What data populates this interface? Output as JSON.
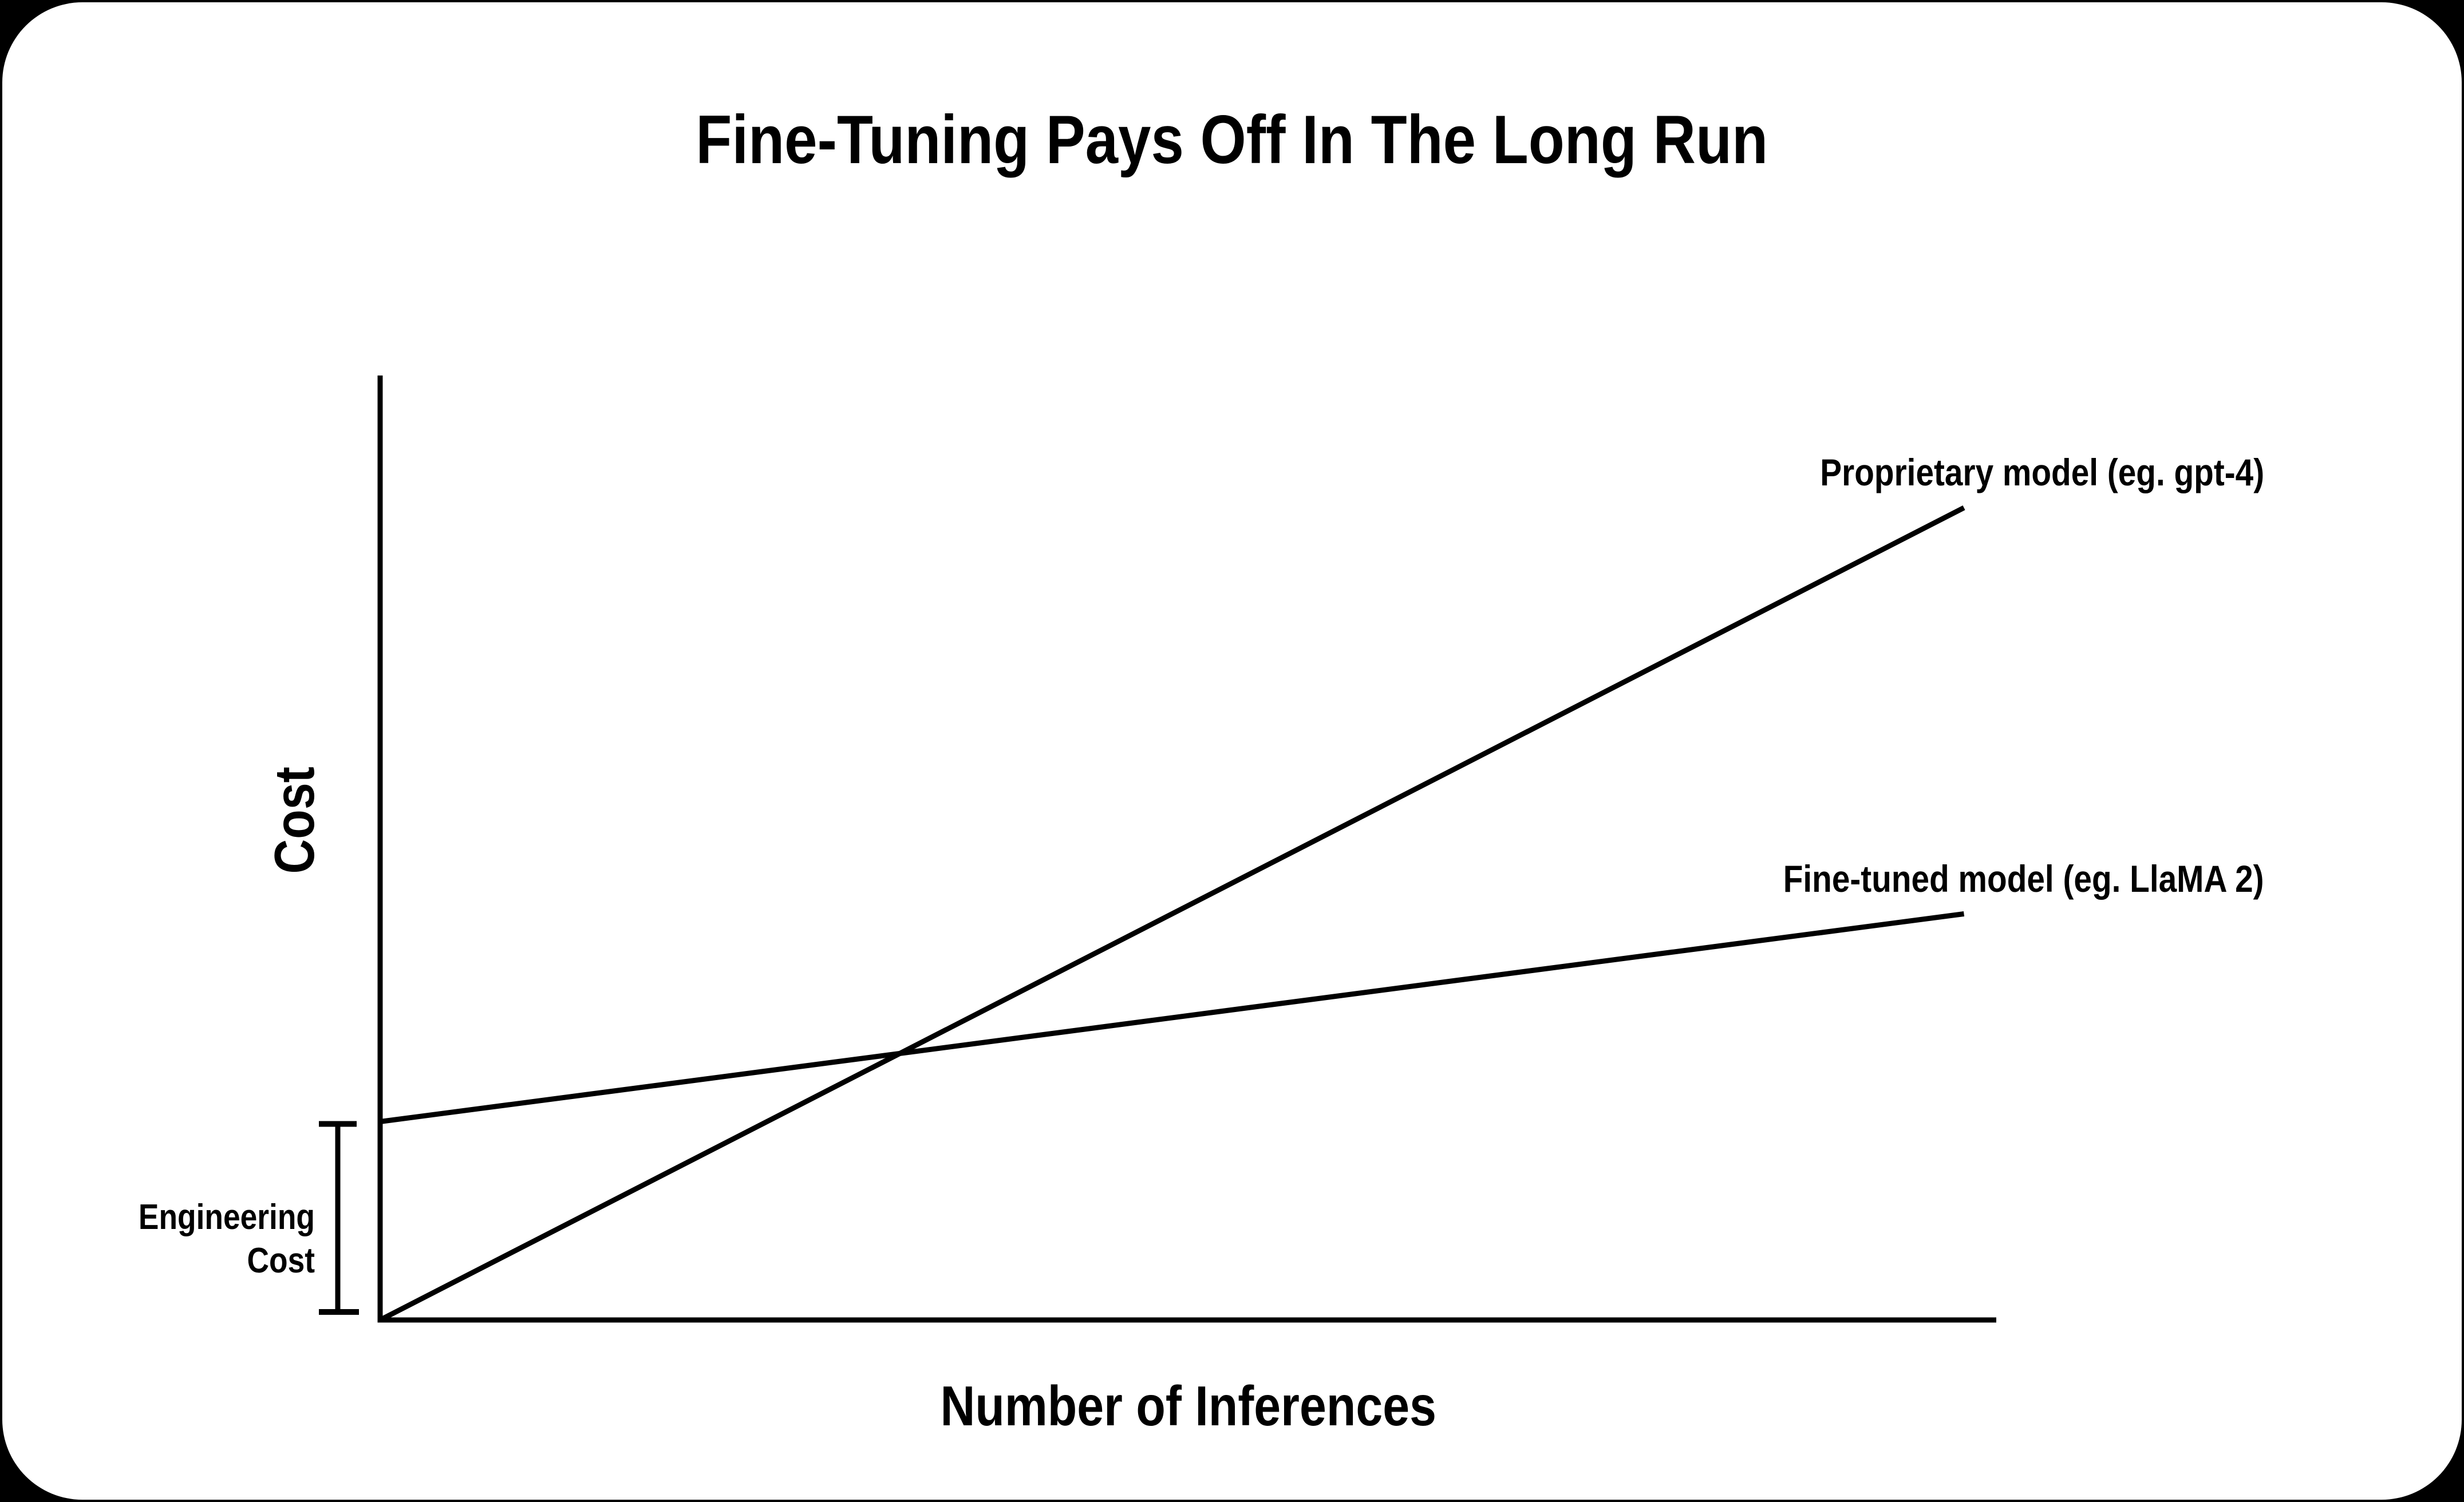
{
  "page": {
    "background_color": "#000000",
    "card_background_color": "#ffffff",
    "ink_color": "#000000"
  },
  "chart_data": {
    "type": "line",
    "title": "Fine-Tuning Pays Off In The Long Run",
    "xlabel": "Number of Inferences",
    "ylabel": "Cost",
    "grid": false,
    "axis_ticks": "none",
    "x_range": [
      0,
      100
    ],
    "y_range": [
      0,
      100
    ],
    "legend_position": "labels-at-line-ends",
    "series": [
      {
        "name": "Proprietary model (eg. gpt-4)",
        "points": [
          [
            0,
            0
          ],
          [
            98,
            86
          ]
        ]
      },
      {
        "name": "Fine-tuned model (eg. LlaMA 2)",
        "points": [
          [
            0,
            21
          ],
          [
            98,
            43
          ]
        ]
      }
    ],
    "annotations": [
      {
        "type": "bracket",
        "axis": "y",
        "label": "Engineering Cost",
        "from_y": 0,
        "to_y": 21
      }
    ],
    "colors": {
      "line": "#000000",
      "text": "#000000"
    }
  }
}
